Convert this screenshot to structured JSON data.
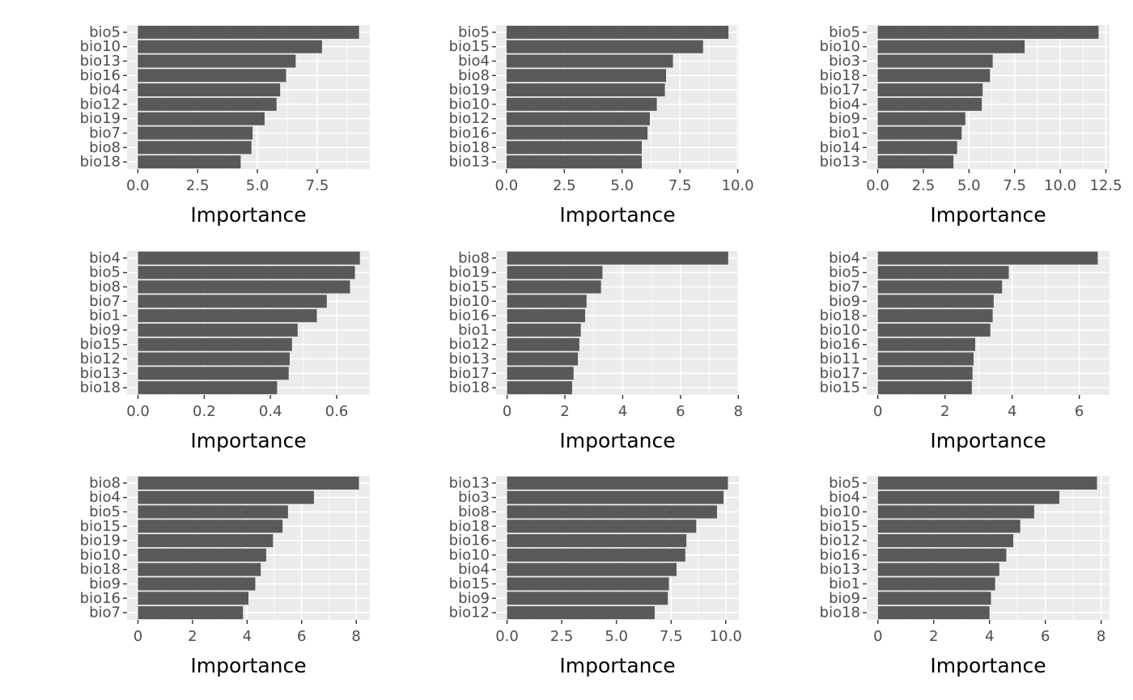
{
  "chart_data": [
    {
      "type": "bar",
      "orientation": "horizontal",
      "grid": true,
      "categories": [
        "bio5",
        "bio10",
        "bio13",
        "bio16",
        "bio4",
        "bio12",
        "bio19",
        "bio7",
        "bio8",
        "bio18"
      ],
      "values": [
        9.25,
        7.7,
        6.6,
        6.2,
        5.95,
        5.8,
        5.3,
        4.8,
        4.75,
        4.3
      ],
      "xlim": [
        -0.45,
        9.7
      ],
      "xticks": [
        0,
        2.5,
        5,
        7.5
      ],
      "xtick_labels": [
        "0.0",
        "2.5",
        "5.0",
        "7.5"
      ],
      "xlabel": "Importance",
      "ylabel": "",
      "title": ""
    },
    {
      "type": "bar",
      "orientation": "horizontal",
      "grid": true,
      "categories": [
        "bio5",
        "bio15",
        "bio4",
        "bio8",
        "bio19",
        "bio10",
        "bio12",
        "bio16",
        "bio18",
        "bio13"
      ],
      "values": [
        9.6,
        8.5,
        7.2,
        6.9,
        6.85,
        6.5,
        6.2,
        6.1,
        5.85,
        5.85
      ],
      "xlim": [
        -0.45,
        10.05
      ],
      "xticks": [
        0,
        2.5,
        5,
        7.5,
        10
      ],
      "xtick_labels": [
        "0.0",
        "2.5",
        "5.0",
        "7.5",
        "10.0"
      ],
      "xlabel": "Importance",
      "ylabel": "",
      "title": ""
    },
    {
      "type": "bar",
      "orientation": "horizontal",
      "grid": true,
      "categories": [
        "bio5",
        "bio10",
        "bio3",
        "bio18",
        "bio17",
        "bio4",
        "bio9",
        "bio1",
        "bio14",
        "bio13"
      ],
      "values": [
        12.1,
        8.05,
        6.3,
        6.15,
        5.75,
        5.7,
        4.8,
        4.6,
        4.35,
        4.15
      ],
      "xlim": [
        -0.6,
        12.7
      ],
      "xticks": [
        0,
        2.5,
        5,
        7.5,
        10,
        12.5
      ],
      "xtick_labels": [
        "0.0",
        "2.5",
        "5.0",
        "7.5",
        "10.0",
        "12.5"
      ],
      "xlabel": "Importance",
      "ylabel": "",
      "title": ""
    },
    {
      "type": "bar",
      "orientation": "horizontal",
      "grid": true,
      "categories": [
        "bio4",
        "bio5",
        "bio8",
        "bio7",
        "bio1",
        "bio9",
        "bio15",
        "bio12",
        "bio13",
        "bio18"
      ],
      "values": [
        0.67,
        0.655,
        0.64,
        0.57,
        0.54,
        0.482,
        0.465,
        0.458,
        0.455,
        0.42
      ],
      "xlim": [
        -0.033,
        0.7
      ],
      "xticks": [
        0,
        0.2,
        0.4,
        0.6
      ],
      "xtick_labels": [
        "0.0",
        "0.2",
        "0.4",
        "0.6"
      ],
      "xlabel": "Importance",
      "ylabel": "",
      "title": ""
    },
    {
      "type": "bar",
      "orientation": "horizontal",
      "grid": true,
      "categories": [
        "bio8",
        "bio19",
        "bio15",
        "bio10",
        "bio16",
        "bio1",
        "bio12",
        "bio13",
        "bio17",
        "bio18"
      ],
      "values": [
        7.65,
        3.3,
        3.25,
        2.75,
        2.7,
        2.55,
        2.5,
        2.45,
        2.3,
        2.25
      ],
      "xlim": [
        -0.38,
        8.02
      ],
      "xticks": [
        0,
        2,
        4,
        6,
        8
      ],
      "xtick_labels": [
        "0",
        "2",
        "4",
        "6",
        "8"
      ],
      "xlabel": "Importance",
      "ylabel": "",
      "title": ""
    },
    {
      "type": "bar",
      "orientation": "horizontal",
      "grid": true,
      "categories": [
        "bio4",
        "bio5",
        "bio7",
        "bio9",
        "bio18",
        "bio10",
        "bio16",
        "bio11",
        "bio17",
        "bio15"
      ],
      "values": [
        6.55,
        3.9,
        3.7,
        3.45,
        3.42,
        3.35,
        2.9,
        2.85,
        2.82,
        2.8
      ],
      "xlim": [
        -0.33,
        6.9
      ],
      "xticks": [
        0,
        2,
        4,
        6
      ],
      "xtick_labels": [
        "0",
        "2",
        "4",
        "6"
      ],
      "xlabel": "Importance",
      "ylabel": "",
      "title": ""
    },
    {
      "type": "bar",
      "orientation": "horizontal",
      "grid": true,
      "categories": [
        "bio8",
        "bio4",
        "bio5",
        "bio15",
        "bio19",
        "bio10",
        "bio18",
        "bio9",
        "bio16",
        "bio7"
      ],
      "values": [
        8.1,
        6.45,
        5.5,
        5.3,
        4.95,
        4.7,
        4.5,
        4.3,
        4.05,
        3.85
      ],
      "xlim": [
        -0.4,
        8.5
      ],
      "xticks": [
        0,
        2,
        4,
        6,
        8
      ],
      "xtick_labels": [
        "0",
        "2",
        "4",
        "6",
        "8"
      ],
      "xlabel": "Importance",
      "ylabel": "",
      "title": ""
    },
    {
      "type": "bar",
      "orientation": "horizontal",
      "grid": true,
      "categories": [
        "bio13",
        "bio3",
        "bio8",
        "bio18",
        "bio16",
        "bio10",
        "bio4",
        "bio15",
        "bio9",
        "bio12"
      ],
      "values": [
        10.1,
        9.9,
        9.6,
        8.65,
        8.2,
        8.15,
        7.75,
        7.4,
        7.35,
        6.75
      ],
      "xlim": [
        -0.5,
        10.6
      ],
      "xticks": [
        0,
        2.5,
        5,
        7.5,
        10
      ],
      "xtick_labels": [
        "0.0",
        "2.5",
        "5.0",
        "7.5",
        "10.0"
      ],
      "xlabel": "Importance",
      "ylabel": "",
      "title": ""
    },
    {
      "type": "bar",
      "orientation": "horizontal",
      "grid": true,
      "categories": [
        "bio5",
        "bio4",
        "bio10",
        "bio15",
        "bio12",
        "bio16",
        "bio13",
        "bio1",
        "bio9",
        "bio18"
      ],
      "values": [
        7.85,
        6.5,
        5.6,
        5.1,
        4.85,
        4.6,
        4.35,
        4.2,
        4.05,
        4.0
      ],
      "xlim": [
        -0.4,
        8.3
      ],
      "xticks": [
        0,
        2,
        4,
        6,
        8
      ],
      "xtick_labels": [
        "0",
        "2",
        "4",
        "6",
        "8"
      ],
      "xlabel": "Importance",
      "ylabel": "",
      "title": ""
    }
  ]
}
